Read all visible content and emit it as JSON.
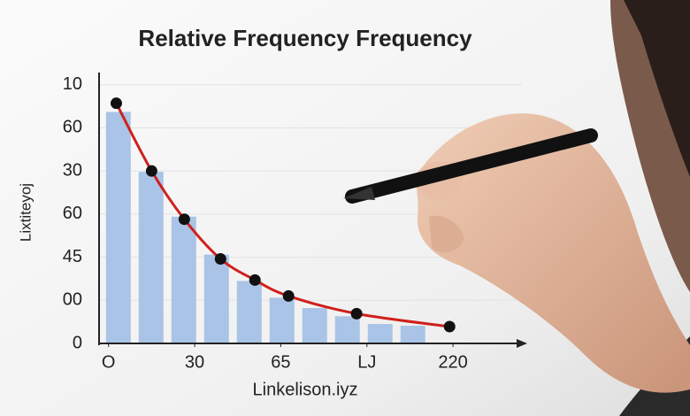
{
  "chart_data": {
    "type": "histogram",
    "title": "Relative Frequency Frequency",
    "y_label": "Lixtiteyoj",
    "x_label": "Linkelison.iyz",
    "bins": [
      -0.03,
      0.35,
      0.73,
      1.11,
      1.49,
      1.87,
      2.25,
      2.63,
      3.01,
      3.39,
      3.77
    ],
    "values": [
      5.37,
      3.98,
      2.94,
      2.06,
      1.45,
      1.06,
      0.82,
      0.63,
      0.45,
      0.41
    ],
    "color": "#a9c4e6",
    "line": {
      "x": [
        0.09,
        0.5,
        0.88,
        1.3,
        1.7,
        2.09,
        2.88,
        3.96
      ],
      "values": [
        5.57,
        4.0,
        2.88,
        1.96,
        1.47,
        1.1,
        0.69,
        0.39
      ],
      "color": "#d0201c",
      "marker_color": "#111111"
    },
    "xlim": [
      -0.11,
      4.8
    ],
    "xticks": [
      {
        "value": 0,
        "label": "O"
      },
      {
        "value": 1,
        "label": "30"
      },
      {
        "value": 2,
        "label": "65"
      },
      {
        "value": 3,
        "label": "LJ"
      },
      {
        "value": 4,
        "label": "220"
      }
    ],
    "ylim": [
      0,
      6.2
    ],
    "yticks": [
      0,
      {
        "value": 1,
        "label": "00"
      },
      {
        "value": 2,
        "label": "45"
      },
      {
        "value": 3,
        "label": "60"
      },
      {
        "value": 4,
        "label": "30"
      },
      {
        "value": 5,
        "label": "60"
      },
      {
        "value": 6,
        "label": "10"
      }
    ],
    "grid": true
  }
}
